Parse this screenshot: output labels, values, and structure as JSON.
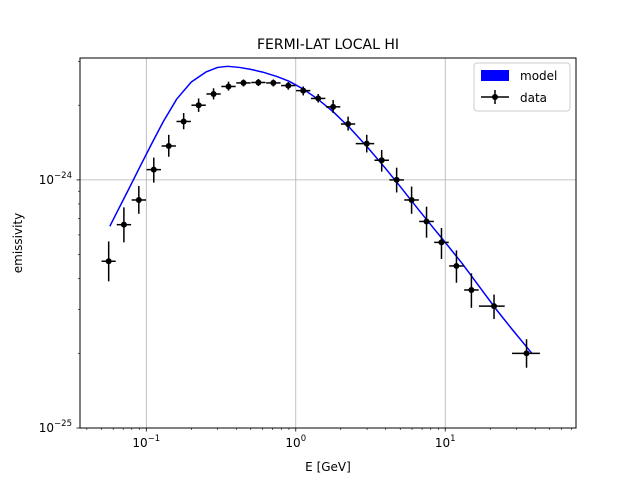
{
  "chart_data": {
    "type": "scatter",
    "title": "FERMI-LAT LOCAL HI",
    "xlabel": "E [GeV]",
    "ylabel": "emissivity",
    "xscale": "log",
    "yscale": "log",
    "xlim": [
      0.036,
      75
    ],
    "ylim": [
      1e-25,
      3.1e-24
    ],
    "grid": true,
    "legend_position": "top-right",
    "x_ticks": [
      {
        "value": 0.1,
        "base": "10",
        "exp": "−1"
      },
      {
        "value": 1,
        "base": "10",
        "exp": "0"
      },
      {
        "value": 10,
        "base": "10",
        "exp": "1"
      }
    ],
    "y_ticks": [
      {
        "value": 1e-25,
        "base": "10",
        "exp": "−25"
      },
      {
        "value": 1e-24,
        "base": "10",
        "exp": "−24"
      }
    ],
    "series": [
      {
        "name": "model",
        "kind": "line",
        "color": "#0000ff",
        "points": [
          [
            0.057,
            6.5e-25
          ],
          [
            0.065,
            7.6e-25
          ],
          [
            0.075,
            9e-25
          ],
          [
            0.09,
            1.12e-24
          ],
          [
            0.11,
            1.42e-24
          ],
          [
            0.13,
            1.72e-24
          ],
          [
            0.16,
            2.12e-24
          ],
          [
            0.2,
            2.48e-24
          ],
          [
            0.25,
            2.72e-24
          ],
          [
            0.3,
            2.84e-24
          ],
          [
            0.35,
            2.87e-24
          ],
          [
            0.42,
            2.84e-24
          ],
          [
            0.5,
            2.79e-24
          ],
          [
            0.6,
            2.72e-24
          ],
          [
            0.75,
            2.61e-24
          ],
          [
            0.9,
            2.5e-24
          ],
          [
            1.1,
            2.34e-24
          ],
          [
            1.4,
            2.12e-24
          ],
          [
            1.8,
            1.87e-24
          ],
          [
            2.3,
            1.62e-24
          ],
          [
            3.0,
            1.36e-24
          ],
          [
            4.0,
            1.11e-24
          ],
          [
            5.0,
            9.4e-25
          ],
          [
            6.5,
            7.7e-25
          ],
          [
            8.0,
            6.6e-25
          ],
          [
            10.0,
            5.6e-25
          ],
          [
            13.0,
            4.6e-25
          ],
          [
            17.0,
            3.7e-25
          ],
          [
            22.0,
            3e-25
          ],
          [
            28.0,
            2.5e-25
          ],
          [
            38.0,
            2e-25
          ]
        ]
      },
      {
        "name": "data",
        "kind": "errorbar",
        "color": "#000000",
        "points": [
          {
            "x": 0.056,
            "y": 4.7e-25,
            "xlo": 0.0502,
            "xhi": 0.0624,
            "ylo": 3.9e-25,
            "yhi": 5.65e-25
          },
          {
            "x": 0.0708,
            "y": 6.6e-25,
            "xlo": 0.0634,
            "xhi": 0.0791,
            "ylo": 5.6e-25,
            "yhi": 7.75e-25
          },
          {
            "x": 0.0891,
            "y": 8.3e-25,
            "xlo": 0.0798,
            "xhi": 0.0995,
            "ylo": 7.3e-25,
            "yhi": 9.45e-25
          },
          {
            "x": 0.1122,
            "y": 1.1e-24,
            "xlo": 0.1005,
            "xhi": 0.1253,
            "ylo": 9.75e-25,
            "yhi": 1.23e-24
          },
          {
            "x": 0.1413,
            "y": 1.37e-24,
            "xlo": 0.1265,
            "xhi": 0.1578,
            "ylo": 1.24e-24,
            "yhi": 1.52e-24
          },
          {
            "x": 0.1778,
            "y": 1.72e-24,
            "xlo": 0.1592,
            "xhi": 0.1986,
            "ylo": 1.6e-24,
            "yhi": 1.86e-24
          },
          {
            "x": 0.2239,
            "y": 2e-24,
            "xlo": 0.2005,
            "xhi": 0.25,
            "ylo": 1.88e-24,
            "yhi": 2.13e-24
          },
          {
            "x": 0.2818,
            "y": 2.22e-24,
            "xlo": 0.2524,
            "xhi": 0.3147,
            "ylo": 2.11e-24,
            "yhi": 2.34e-24
          },
          {
            "x": 0.3548,
            "y": 2.38e-24,
            "xlo": 0.3177,
            "xhi": 0.3962,
            "ylo": 2.29e-24,
            "yhi": 2.49e-24
          },
          {
            "x": 0.4467,
            "y": 2.46e-24,
            "xlo": 0.4,
            "xhi": 0.4988,
            "ylo": 2.38e-24,
            "yhi": 2.54e-24
          },
          {
            "x": 0.5623,
            "y": 2.47e-24,
            "xlo": 0.5036,
            "xhi": 0.6279,
            "ylo": 2.39e-24,
            "yhi": 2.55e-24
          },
          {
            "x": 0.7079,
            "y": 2.46e-24,
            "xlo": 0.634,
            "xhi": 0.7905,
            "ylo": 2.38e-24,
            "yhi": 2.54e-24
          },
          {
            "x": 0.8913,
            "y": 2.4e-24,
            "xlo": 0.7982,
            "xhi": 0.9953,
            "ylo": 2.31e-24,
            "yhi": 2.48e-24
          },
          {
            "x": 1.122,
            "y": 2.29e-24,
            "xlo": 1.005,
            "xhi": 1.253,
            "ylo": 2.19e-24,
            "yhi": 2.38e-24
          },
          {
            "x": 1.413,
            "y": 2.13e-24,
            "xlo": 1.265,
            "xhi": 1.578,
            "ylo": 2.05e-24,
            "yhi": 2.22e-24
          },
          {
            "x": 1.778,
            "y": 1.97e-24,
            "xlo": 1.592,
            "xhi": 1.986,
            "ylo": 1.86e-24,
            "yhi": 2.1e-24
          },
          {
            "x": 2.239,
            "y": 1.68e-24,
            "xlo": 2.005,
            "xhi": 2.5,
            "ylo": 1.58e-24,
            "yhi": 1.8e-24
          },
          {
            "x": 2.985,
            "y": 1.4e-24,
            "xlo": 2.52,
            "xhi": 3.35,
            "ylo": 1.29e-24,
            "yhi": 1.52e-24
          },
          {
            "x": 3.758,
            "y": 1.2e-24,
            "xlo": 3.36,
            "xhi": 4.2,
            "ylo": 1.08e-24,
            "yhi": 1.32e-24
          },
          {
            "x": 4.732,
            "y": 1e-24,
            "xlo": 4.23,
            "xhi": 5.29,
            "ylo": 8.9e-25,
            "yhi": 1.12e-24
          },
          {
            "x": 5.957,
            "y": 8.3e-25,
            "xlo": 5.32,
            "xhi": 6.66,
            "ylo": 7.3e-25,
            "yhi": 9.4e-25
          },
          {
            "x": 7.499,
            "y": 6.8e-25,
            "xlo": 6.7,
            "xhi": 8.39,
            "ylo": 5.85e-25,
            "yhi": 7.8e-25
          },
          {
            "x": 9.44,
            "y": 5.6e-25,
            "xlo": 8.44,
            "xhi": 10.56,
            "ylo": 4.8e-25,
            "yhi": 6.4e-25
          },
          {
            "x": 11.89,
            "y": 4.5e-25,
            "xlo": 10.63,
            "xhi": 13.29,
            "ylo": 3.85e-25,
            "yhi": 5.2e-25
          },
          {
            "x": 14.97,
            "y": 3.6e-25,
            "xlo": 13.38,
            "xhi": 16.73,
            "ylo": 3.05e-25,
            "yhi": 4.2e-25
          },
          {
            "x": 21.21,
            "y": 3.1e-25,
            "xlo": 16.8,
            "xhi": 25.0,
            "ylo": 2.75e-25,
            "yhi": 3.45e-25
          },
          {
            "x": 35.0,
            "y": 2e-25,
            "xlo": 28.0,
            "xhi": 43.0,
            "ylo": 1.75e-25,
            "yhi": 2.28e-25
          }
        ]
      }
    ]
  }
}
